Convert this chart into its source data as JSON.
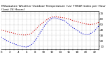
{
  "title": "Milwaukee Weather Outdoor Temperature (vs) THSW Index per Hour (Last 24 Hours)",
  "hours": [
    0,
    1,
    2,
    3,
    4,
    5,
    6,
    7,
    8,
    9,
    10,
    11,
    12,
    13,
    14,
    15,
    16,
    17,
    18,
    19,
    20,
    21,
    22,
    23
  ],
  "temp": [
    40,
    38,
    36,
    34,
    32,
    31,
    31,
    33,
    40,
    48,
    54,
    60,
    64,
    64,
    63,
    62,
    60,
    57,
    55,
    53,
    51,
    50,
    51,
    54
  ],
  "thsw": [
    27,
    22,
    18,
    15,
    12,
    10,
    9,
    12,
    20,
    32,
    45,
    55,
    62,
    62,
    59,
    57,
    50,
    44,
    39,
    34,
    31,
    33,
    38,
    47
  ],
  "temp_color": "#cc0000",
  "thsw_color": "#0000cc",
  "ylim": [
    5,
    75
  ],
  "ytick_vals": [
    10,
    20,
    30,
    40,
    50,
    60,
    70
  ],
  "ytick_labels": [
    "10",
    "20",
    "30",
    "40",
    "50",
    "60",
    "70"
  ],
  "background_color": "#ffffff",
  "grid_color": "#888888",
  "title_fontsize": 3.2,
  "tick_fontsize": 2.8,
  "line_width": 0.8,
  "figsize": [
    1.6,
    0.87
  ],
  "dpi": 100
}
